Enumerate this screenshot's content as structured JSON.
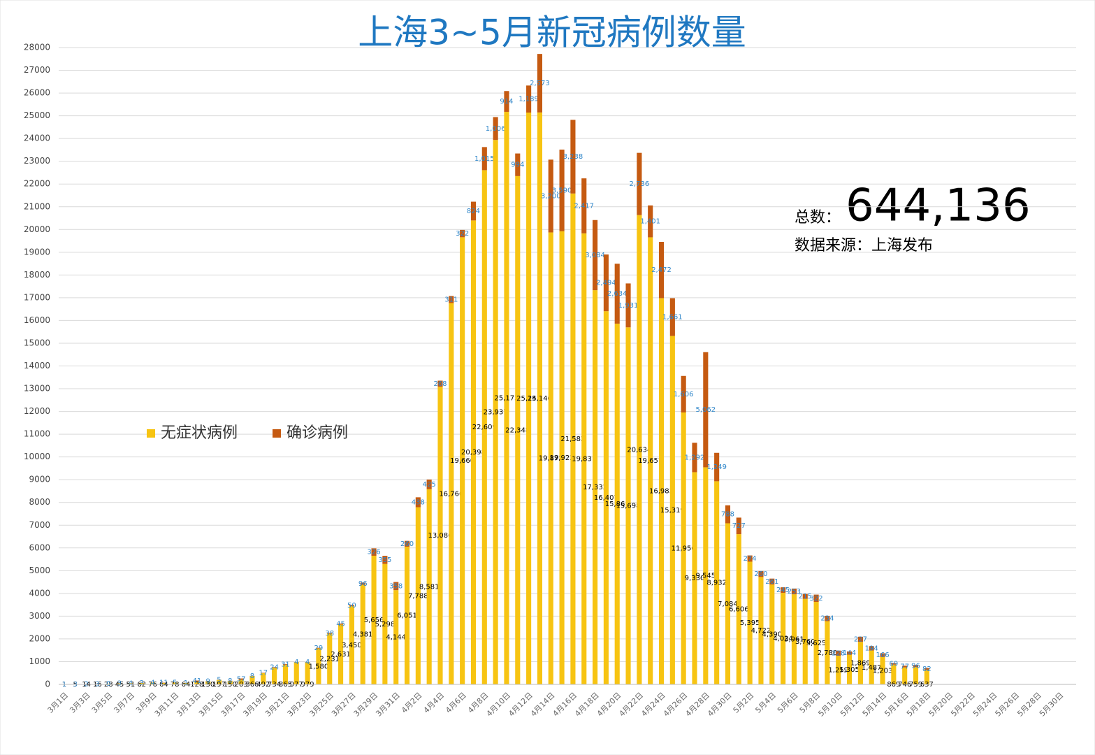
{
  "chart_data": {
    "type": "stacked_bar",
    "title": "上海3~5月新冠病例数量",
    "total_caption": "总数：",
    "total": "644,136",
    "source": "数据来源：上海发布",
    "categories": [
      "3月1日",
      null,
      "3月3日",
      null,
      "3月5日",
      null,
      "3月7日",
      null,
      "3月9日",
      null,
      "3月11日",
      null,
      "3月13日",
      null,
      "3月15日",
      null,
      "3月17日",
      null,
      "3月19日",
      null,
      "3月21日",
      null,
      "3月23日",
      null,
      "3月25日",
      null,
      "3月27日",
      null,
      "3月29日",
      null,
      "3月31日",
      null,
      "4月2日",
      null,
      "4月4日",
      null,
      "4月6日",
      null,
      "4月8日",
      null,
      "4月10日",
      null,
      "4月12日",
      null,
      "4月14日",
      null,
      "4月16日",
      null,
      "4月18日",
      null,
      "4月20日",
      null,
      "4月22日",
      null,
      "4月24日",
      null,
      "4月26日",
      null,
      "4月28日",
      null,
      "4月30日",
      null,
      "5月2日",
      null,
      "5月4日",
      null,
      "5月6日",
      null,
      "5月8日",
      null,
      "5月10日",
      null,
      "5月12日",
      null,
      "5月14日",
      null,
      "5月16日",
      null,
      "5月18日",
      null,
      "5月20日",
      null,
      "5月22日",
      null,
      "5月24日",
      null,
      "5月26日",
      null,
      "5月28日",
      null,
      "5月30日",
      null
    ],
    "series": [
      {
        "name": "无症状病例",
        "color": "#f7c412",
        "values": [
          1,
          5,
          14,
          16,
          28,
          45,
          51,
          62,
          76,
          64,
          78,
          64,
          128,
          130,
          197,
          150,
          203,
          366,
          492,
          734,
          865,
          977,
          979,
          1580,
          2231,
          2631,
          3450,
          4381,
          5656,
          5298,
          4144,
          6051,
          7788,
          8581,
          13086,
          16766,
          19660,
          20398,
          22609,
          23937,
          25173,
          22348,
          25141,
          25146,
          19872,
          19923,
          21582,
          19831,
          17332,
          16407,
          15861,
          15698,
          20634,
          19657,
          16983,
          15319,
          11956,
          9330,
          9545,
          8932,
          7084,
          6606,
          5395,
          4722,
          4390,
          4024,
          3961,
          3760,
          3625,
          2780,
          1259,
          1305,
          1869,
          1487,
          1203,
          869,
          746,
          759,
          637,
          null,
          null,
          null,
          null,
          null,
          null,
          null,
          null,
          null,
          null,
          null,
          null,
          null
        ],
        "value_labels": [
          "1",
          "5",
          "14",
          "16",
          "28",
          "45",
          "51",
          "62",
          "76",
          "64",
          "78",
          "64",
          "128",
          "130",
          "197",
          "150",
          "203",
          "366",
          "492",
          "734",
          "865",
          "977",
          "979",
          "1,580",
          "2,231",
          "2,631",
          "3,450",
          "4,381",
          "5,656",
          "5,298",
          "4,144",
          "6,051",
          "7,788",
          "8,581",
          "13,086",
          "16,766",
          "19,660",
          "20,398",
          "22,609",
          "23,937",
          "25,173",
          "22,348",
          "25,141",
          "25,146",
          "19,872",
          "19,923",
          "21,582",
          "19,831",
          "17,332",
          "16,407",
          "15,861",
          "15,698",
          "20,634",
          "19,657",
          "16,983",
          "15,319",
          "11,956",
          "9,330",
          "9,545",
          "8,932",
          "7,084",
          "6,606",
          "5,395",
          "4,722",
          "4,390",
          "4,024",
          "3,961",
          "3,760",
          "3,625",
          "2,780",
          "1,259",
          "1,305",
          "1,869",
          "1,487",
          "1,203",
          "869",
          "746",
          "759",
          "637",
          null,
          null,
          null,
          null,
          null,
          null,
          null,
          null,
          null,
          null,
          null,
          null,
          null
        ]
      },
      {
        "name": "确诊病例",
        "color": "#c55a11",
        "values": [
          1,
          3,
          2,
          3,
          0,
          3,
          4,
          3,
          4,
          11,
          5,
          1,
          41,
          9,
          5,
          8,
          57,
          8,
          17,
          24,
          31,
          4,
          4,
          29,
          38,
          45,
          50,
          96,
          326,
          355,
          358,
          260,
          438,
          425,
          268,
          311,
          322,
          824,
          1015,
          1006,
          914,
          994,
          1189,
          2573,
          3200,
          3590,
          3238,
          2417,
          3084,
          2494,
          2634,
          1931,
          2736,
          1401,
          2472,
          1661,
          1606,
          1292,
          5062,
          1249,
          788,
          727,
          274,
          260,
          261,
          245,
          253,
          215,
          322,
          234,
          228,
          144,
          227,
          194,
          166,
          69,
          77,
          96,
          82,
          null,
          null,
          null,
          null,
          null,
          null,
          null,
          null,
          null,
          null,
          null,
          null,
          null
        ],
        "value_labels": [
          "1",
          "3",
          "2",
          "3",
          "0",
          "3",
          "4",
          "3",
          "4",
          "11",
          "5",
          "1",
          "41",
          "9",
          "5",
          "8",
          "57",
          "8",
          "17",
          "24",
          "31",
          "4",
          "4",
          "29",
          "38",
          "45",
          "50",
          "96",
          "326",
          "355",
          "358",
          "260",
          "438",
          "425",
          "268",
          "311",
          "322",
          "824",
          "1,015",
          "1,006",
          "914",
          "994",
          "1,189",
          "2,573",
          "3,200",
          "3,590",
          "3,238",
          "2,417",
          "3,084",
          "2,494",
          "2,634",
          "1,931",
          "2,736",
          "1,401",
          "2,472",
          "1,661",
          "1,606",
          "1,292",
          "5,062",
          "1,249",
          "788",
          "727",
          "274",
          "260",
          "261",
          "245",
          "253",
          "215",
          "322",
          "234",
          "228",
          "144",
          "227",
          "194",
          "166",
          "69",
          "77",
          "96",
          "82",
          null,
          null,
          null,
          null,
          null,
          null,
          null,
          null,
          null,
          null,
          null,
          null,
          null
        ]
      }
    ],
    "ylim": [
      0,
      28000
    ],
    "yticks": [
      0,
      1000,
      2000,
      3000,
      4000,
      5000,
      6000,
      7000,
      8000,
      9000,
      10000,
      11000,
      12000,
      13000,
      14000,
      15000,
      16000,
      17000,
      18000,
      19000,
      20000,
      21000,
      22000,
      23000,
      24000,
      25000,
      26000,
      27000,
      28000
    ],
    "grid": true
  }
}
